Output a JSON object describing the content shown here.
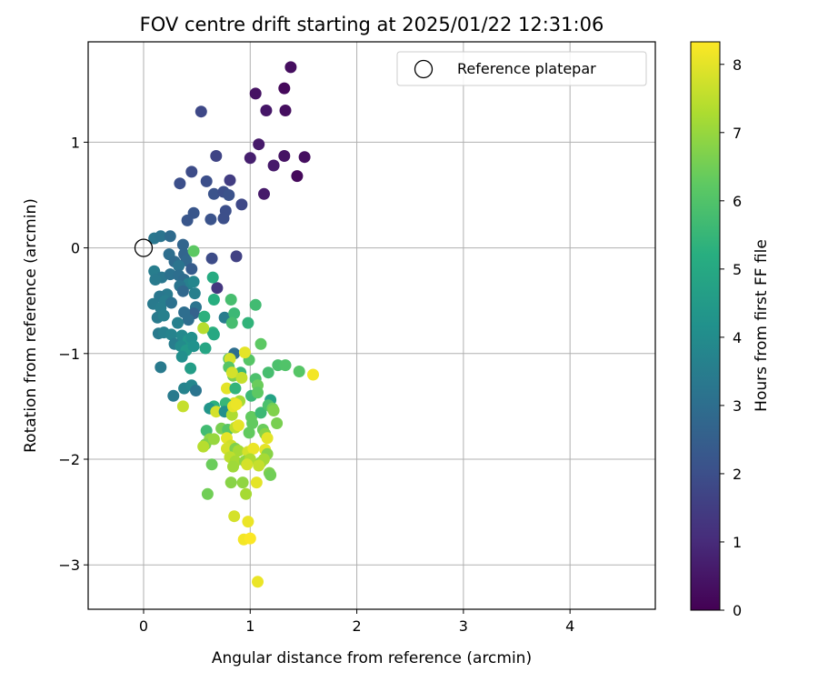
{
  "chart_data": {
    "type": "scatter",
    "title": "FOV centre drift starting at 2025/01/22 12:31:06",
    "xlabel": "Angular distance from reference (arcmin)",
    "ylabel": "Rotation from reference (arcmin)",
    "xlim": [
      -0.52,
      4.8
    ],
    "ylim": [
      -3.42,
      1.95
    ],
    "xticks": [
      0,
      1,
      2,
      3,
      4
    ],
    "yticks": [
      -3,
      -2,
      -1,
      0,
      1
    ],
    "grid": true,
    "legend": {
      "position": "top-right",
      "entries": [
        "Reference platepar"
      ]
    },
    "reference_point": {
      "x": 0,
      "y": 0,
      "label": "Reference platepar"
    },
    "colorbar": {
      "label": "Hours from first FF file",
      "colormap": "viridis",
      "range": [
        0,
        8.33
      ],
      "ticks": [
        0,
        1,
        2,
        3,
        4,
        5,
        6,
        7,
        8
      ]
    },
    "series": [
      {
        "points": [
          [
            1.38,
            1.71,
            0.3
          ],
          [
            1.05,
            1.46,
            0.4
          ],
          [
            1.32,
            1.51,
            0.2
          ],
          [
            1.15,
            1.3,
            0.5
          ],
          [
            1.33,
            1.3,
            0.3
          ],
          [
            1.08,
            0.98,
            0.6
          ],
          [
            1.0,
            0.85,
            0.7
          ],
          [
            1.32,
            0.87,
            0.4
          ],
          [
            1.51,
            0.86,
            0.3
          ],
          [
            1.22,
            0.78,
            0.6
          ],
          [
            1.44,
            0.68,
            0.2
          ],
          [
            1.13,
            0.51,
            0.6
          ],
          [
            0.54,
            1.29,
            1.8
          ],
          [
            0.68,
            0.87,
            1.7
          ],
          [
            0.81,
            0.64,
            1.5
          ],
          [
            0.59,
            0.63,
            2.0
          ],
          [
            0.45,
            0.72,
            1.9
          ],
          [
            0.34,
            0.61,
            2.0
          ],
          [
            0.66,
            0.51,
            2.1
          ],
          [
            0.75,
            0.53,
            2.0
          ],
          [
            0.8,
            0.5,
            2.1
          ],
          [
            0.92,
            0.41,
            1.8
          ],
          [
            0.77,
            0.35,
            2.0
          ],
          [
            0.47,
            0.33,
            2.2
          ],
          [
            0.41,
            0.26,
            2.2
          ],
          [
            0.63,
            0.27,
            2.1
          ],
          [
            0.75,
            0.28,
            2.0
          ],
          [
            0.87,
            -0.08,
            1.6
          ],
          [
            0.64,
            -0.1,
            1.9
          ],
          [
            0.69,
            -0.38,
            1.3
          ],
          [
            0.1,
            0.09,
            3.3
          ],
          [
            0.16,
            0.11,
            3.2
          ],
          [
            0.25,
            0.11,
            2.9
          ],
          [
            0.37,
            0.03,
            2.7
          ],
          [
            0.24,
            -0.06,
            3.0
          ],
          [
            0.29,
            -0.13,
            2.9
          ],
          [
            0.38,
            -0.06,
            2.7
          ],
          [
            0.4,
            -0.12,
            2.8
          ],
          [
            0.33,
            -0.17,
            3.2
          ],
          [
            0.45,
            -0.2,
            2.4
          ],
          [
            0.1,
            -0.22,
            3.5
          ],
          [
            0.17,
            -0.28,
            3.3
          ],
          [
            0.25,
            -0.25,
            3.1
          ],
          [
            0.33,
            -0.26,
            3.0
          ],
          [
            0.38,
            -0.3,
            2.9
          ],
          [
            0.11,
            -0.3,
            3.4
          ],
          [
            0.42,
            -0.34,
            3.6
          ],
          [
            0.47,
            -0.32,
            3.8
          ],
          [
            0.34,
            -0.36,
            3.2
          ],
          [
            0.37,
            -0.41,
            2.8
          ],
          [
            0.48,
            -0.43,
            3.6
          ],
          [
            0.22,
            -0.44,
            3.4
          ],
          [
            0.15,
            -0.46,
            3.3
          ],
          [
            0.2,
            -0.5,
            3.5
          ],
          [
            0.26,
            -0.52,
            3.1
          ],
          [
            0.09,
            -0.53,
            3.4
          ],
          [
            0.16,
            -0.57,
            3.5
          ],
          [
            0.49,
            -0.56,
            3.2
          ],
          [
            0.47,
            -0.62,
            2.6
          ],
          [
            0.38,
            -0.61,
            3.0
          ],
          [
            0.13,
            -0.66,
            3.4
          ],
          [
            0.19,
            -0.64,
            3.6
          ],
          [
            0.42,
            -0.68,
            3.0
          ],
          [
            0.32,
            -0.71,
            3.6
          ],
          [
            0.65,
            -0.28,
            5.1
          ],
          [
            0.66,
            -0.49,
            5.2
          ],
          [
            0.57,
            -0.65,
            5.3
          ],
          [
            0.76,
            -0.66,
            3.5
          ],
          [
            0.85,
            -0.62,
            5.6
          ],
          [
            0.82,
            -0.49,
            5.8
          ],
          [
            1.05,
            -0.54,
            5.7
          ],
          [
            0.98,
            -0.71,
            5.4
          ],
          [
            0.83,
            -0.71,
            5.8
          ],
          [
            0.65,
            -0.8,
            5.3
          ],
          [
            0.66,
            -0.82,
            5.0
          ],
          [
            0.14,
            -0.81,
            3.4
          ],
          [
            0.19,
            -0.8,
            3.6
          ],
          [
            0.26,
            -0.82,
            3.7
          ],
          [
            0.29,
            -0.91,
            3.5
          ],
          [
            0.36,
            -0.83,
            3.9
          ],
          [
            0.42,
            -0.87,
            4.3
          ],
          [
            0.45,
            -0.85,
            4.1
          ],
          [
            0.35,
            -0.93,
            4.0
          ],
          [
            0.4,
            -0.97,
            4.4
          ],
          [
            0.47,
            -0.93,
            4.2
          ],
          [
            0.36,
            -1.03,
            4.1
          ],
          [
            0.58,
            -0.95,
            4.9
          ],
          [
            0.44,
            -1.14,
            4.6
          ],
          [
            0.16,
            -1.13,
            3.4
          ],
          [
            0.28,
            -1.4,
            3.4
          ],
          [
            0.38,
            -1.33,
            3.7
          ],
          [
            0.45,
            -1.3,
            3.8
          ],
          [
            0.49,
            -1.35,
            3.2
          ],
          [
            0.47,
            -0.03,
            6.2
          ],
          [
            0.56,
            -0.76,
            7.4
          ],
          [
            0.37,
            -1.5,
            7.6
          ],
          [
            0.85,
            -1.0,
            3.0
          ],
          [
            0.8,
            -1.05,
            5.9
          ],
          [
            0.99,
            -1.06,
            6.1
          ],
          [
            0.81,
            -1.05,
            7.8
          ],
          [
            0.95,
            -0.99,
            8.0
          ],
          [
            1.1,
            -0.91,
            6.2
          ],
          [
            0.91,
            -1.18,
            5.5
          ],
          [
            0.8,
            -1.13,
            6.1
          ],
          [
            0.84,
            -1.21,
            6.6
          ],
          [
            1.05,
            -1.24,
            5.9
          ],
          [
            1.17,
            -1.18,
            5.8
          ],
          [
            1.26,
            -1.11,
            5.9
          ],
          [
            1.33,
            -1.11,
            6.0
          ],
          [
            1.46,
            -1.17,
            6.1
          ],
          [
            1.59,
            -1.2,
            8.2
          ],
          [
            0.83,
            -1.18,
            7.8
          ],
          [
            0.92,
            -1.23,
            7.6
          ],
          [
            0.78,
            -1.33,
            8.0
          ],
          [
            0.86,
            -1.33,
            5.4
          ],
          [
            1.07,
            -1.3,
            6.4
          ],
          [
            1.19,
            -1.44,
            4.8
          ],
          [
            1.01,
            -1.4,
            5.6
          ],
          [
            1.07,
            -1.37,
            6.2
          ],
          [
            0.9,
            -1.45,
            7.2
          ],
          [
            0.85,
            -1.47,
            7.9
          ],
          [
            0.77,
            -1.47,
            5.5
          ],
          [
            0.66,
            -1.5,
            5.3
          ],
          [
            0.62,
            -1.52,
            4.3
          ],
          [
            0.68,
            -1.55,
            7.8
          ],
          [
            0.76,
            -1.55,
            4.1
          ],
          [
            0.83,
            -1.58,
            7.3
          ],
          [
            0.84,
            -1.5,
            8.0
          ],
          [
            0.87,
            -1.48,
            8.1
          ],
          [
            1.01,
            -1.6,
            6.3
          ],
          [
            1.1,
            -1.56,
            5.6
          ],
          [
            1.17,
            -1.49,
            5.9
          ],
          [
            1.21,
            -1.52,
            6.5
          ],
          [
            1.22,
            -1.54,
            6.7
          ],
          [
            1.02,
            -1.66,
            6.3
          ],
          [
            1.12,
            -1.72,
            6.4
          ],
          [
            1.25,
            -1.66,
            6.6
          ],
          [
            0.59,
            -1.73,
            5.7
          ],
          [
            0.73,
            -1.71,
            6.6
          ],
          [
            0.79,
            -1.72,
            6.1
          ],
          [
            0.86,
            -1.7,
            7.5
          ],
          [
            0.89,
            -1.68,
            8.0
          ],
          [
            0.99,
            -1.75,
            6.3
          ],
          [
            1.14,
            -1.76,
            6.8
          ],
          [
            1.16,
            -1.8,
            8.0
          ],
          [
            0.62,
            -1.81,
            6.9
          ],
          [
            0.58,
            -1.86,
            6.7
          ],
          [
            0.66,
            -1.81,
            7.0
          ],
          [
            0.78,
            -1.8,
            8.0
          ],
          [
            0.82,
            -1.87,
            7.7
          ],
          [
            0.56,
            -1.88,
            7.4
          ],
          [
            0.78,
            -1.9,
            7.8
          ],
          [
            0.86,
            -1.9,
            6.7
          ],
          [
            0.89,
            -1.92,
            7.2
          ],
          [
            0.98,
            -1.93,
            7.8
          ],
          [
            1.03,
            -1.9,
            8.1
          ],
          [
            1.14,
            -1.91,
            8.0
          ],
          [
            1.16,
            -1.95,
            6.8
          ],
          [
            0.81,
            -1.98,
            7.5
          ],
          [
            0.86,
            -2.02,
            7.2
          ],
          [
            0.95,
            -2.02,
            6.9
          ],
          [
            1.0,
            -2.0,
            7.3
          ],
          [
            1.1,
            -2.03,
            7.0
          ],
          [
            1.13,
            -2.0,
            7.2
          ],
          [
            1.18,
            -2.13,
            6.7
          ],
          [
            0.64,
            -2.05,
            6.4
          ],
          [
            0.84,
            -2.07,
            7.1
          ],
          [
            0.97,
            -2.05,
            7.8
          ],
          [
            1.08,
            -2.06,
            7.6
          ],
          [
            1.06,
            -2.22,
            8.0
          ],
          [
            0.82,
            -2.22,
            6.8
          ],
          [
            0.93,
            -2.22,
            6.9
          ],
          [
            0.96,
            -2.33,
            7.2
          ],
          [
            1.19,
            -2.15,
            6.5
          ],
          [
            0.6,
            -2.33,
            6.5
          ],
          [
            0.85,
            -2.54,
            7.8
          ],
          [
            0.98,
            -2.59,
            8.1
          ],
          [
            0.94,
            -2.76,
            8.2
          ],
          [
            1.0,
            -2.75,
            8.3
          ],
          [
            1.07,
            -3.16,
            8.1
          ]
        ]
      }
    ]
  }
}
